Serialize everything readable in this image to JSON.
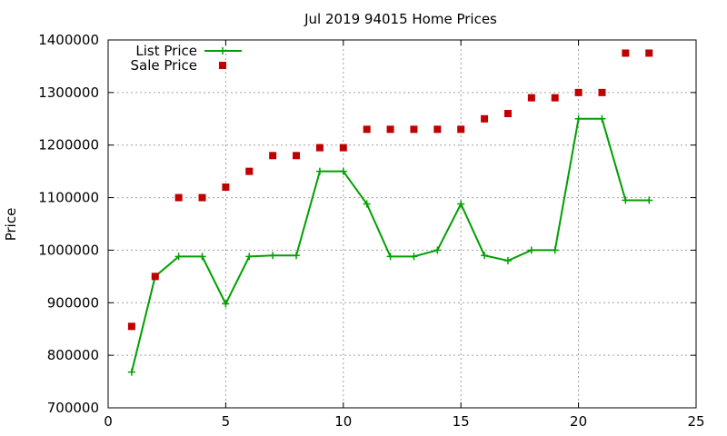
{
  "chart_data": {
    "type": "line",
    "title": "Jul 2019 94015 Home Prices",
    "xlabel": "",
    "ylabel": "Price",
    "xlim": [
      0,
      25
    ],
    "ylim": [
      700000,
      1400000
    ],
    "xticks": [
      "0",
      "5",
      "10",
      "15",
      "20",
      "25"
    ],
    "yticks": [
      "700000",
      "800000",
      "900000",
      "1000000",
      "1100000",
      "1200000",
      "1300000",
      "1400000"
    ],
    "grid": true,
    "legend_position": "top-left",
    "series": [
      {
        "name": "List Price",
        "style": "line-points",
        "color": "#00a000",
        "x": [
          1,
          2,
          3,
          4,
          5,
          6,
          7,
          8,
          9,
          10,
          11,
          12,
          13,
          14,
          15,
          16,
          17,
          18,
          19,
          20,
          21,
          22,
          23
        ],
        "y": [
          768000,
          950000,
          988000,
          988000,
          898000,
          988000,
          990000,
          990000,
          1150000,
          1150000,
          1088000,
          988000,
          988000,
          1000000,
          1088000,
          990000,
          980000,
          1000000,
          1000000,
          1250000,
          1250000,
          1095000,
          1095000
        ]
      },
      {
        "name": "Sale Price",
        "style": "points",
        "color": "#c00000",
        "x": [
          1,
          2,
          3,
          4,
          5,
          6,
          7,
          8,
          9,
          10,
          11,
          12,
          13,
          14,
          15,
          16,
          17,
          18,
          19,
          20,
          21,
          22,
          23
        ],
        "y": [
          855000,
          950000,
          1100000,
          1100000,
          1120000,
          1150000,
          1180000,
          1180000,
          1195000,
          1195000,
          1230000,
          1230000,
          1230000,
          1230000,
          1230000,
          1250000,
          1260000,
          1290000,
          1290000,
          1300000,
          1300000,
          1375000,
          1375000
        ]
      }
    ]
  }
}
